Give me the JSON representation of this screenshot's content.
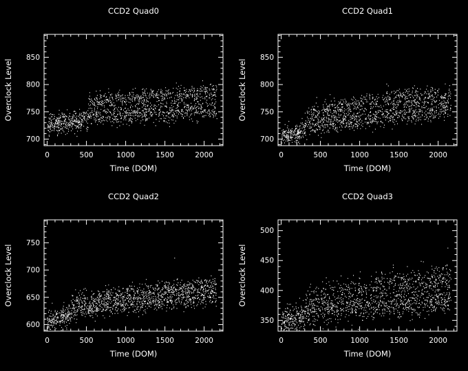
{
  "app": {
    "background": "#000000",
    "foreground": "#ffffff"
  },
  "chart_data": [
    {
      "type": "scatter",
      "title": "CCD2 Quad0",
      "xlabel": "Time (DOM)",
      "ylabel": "Overclock Level",
      "xlim": [
        -40,
        2240
      ],
      "ylim": [
        688,
        892
      ],
      "xticks": [
        0,
        500,
        1000,
        1500,
        2000
      ],
      "yticks": [
        700,
        750,
        800,
        850
      ],
      "x_minor": 100,
      "y_minor": 10,
      "grid": false,
      "point_color": "#ffffff",
      "axis_color": "#ffffff",
      "distribution": {
        "seed": 101,
        "n": 1500,
        "segments": [
          {
            "x0": 0,
            "x1": 520,
            "bands": [
              {
                "w": 1.0,
                "y_start": 727,
                "y_end": 737,
                "sd": 10,
                "exp": 1
              }
            ]
          },
          {
            "x0": 520,
            "x1": 2160,
            "bands": [
              {
                "w": 0.55,
                "y_start": 742,
                "y_end": 754,
                "sd": 9,
                "exp": 0.9
              },
              {
                "w": 0.45,
                "y_start": 767,
                "y_end": 786,
                "sd": 8,
                "exp": 0.8
              }
            ]
          }
        ]
      },
      "outliers": []
    },
    {
      "type": "scatter",
      "title": "CCD2 Quad1",
      "xlabel": "Time (DOM)",
      "ylabel": "Overclock Level",
      "xlim": [
        -40,
        2240
      ],
      "ylim": [
        688,
        892
      ],
      "xticks": [
        0,
        500,
        1000,
        1500,
        2000
      ],
      "yticks": [
        700,
        750,
        800,
        850
      ],
      "x_minor": 100,
      "y_minor": 10,
      "grid": false,
      "point_color": "#ffffff",
      "axis_color": "#ffffff",
      "distribution": {
        "seed": 202,
        "n": 1500,
        "segments": [
          {
            "x0": 0,
            "x1": 300,
            "bands": [
              {
                "w": 1.0,
                "y_start": 706,
                "y_end": 714,
                "sd": 8,
                "exp": 1
              }
            ]
          },
          {
            "x0": 300,
            "x1": 2160,
            "bands": [
              {
                "w": 0.55,
                "y_start": 722,
                "y_end": 754,
                "sd": 9,
                "exp": 0.8
              },
              {
                "w": 0.45,
                "y_start": 738,
                "y_end": 783,
                "sd": 9,
                "exp": 0.55
              }
            ]
          }
        ]
      },
      "outliers": []
    },
    {
      "type": "scatter",
      "title": "CCD2 Quad2",
      "xlabel": "Time (DOM)",
      "ylabel": "Overclock Level",
      "xlim": [
        -40,
        2240
      ],
      "ylim": [
        588,
        792
      ],
      "xticks": [
        0,
        500,
        1000,
        1500,
        2000
      ],
      "yticks": [
        600,
        650,
        700,
        750
      ],
      "x_minor": 100,
      "y_minor": 10,
      "grid": false,
      "point_color": "#ffffff",
      "axis_color": "#ffffff",
      "distribution": {
        "seed": 303,
        "n": 1500,
        "segments": [
          {
            "x0": 0,
            "x1": 300,
            "bands": [
              {
                "w": 1.0,
                "y_start": 607,
                "y_end": 616,
                "sd": 9,
                "exp": 1
              }
            ]
          },
          {
            "x0": 300,
            "x1": 2160,
            "bands": [
              {
                "w": 0.55,
                "y_start": 624,
                "y_end": 652,
                "sd": 9,
                "exp": 0.8
              },
              {
                "w": 0.45,
                "y_start": 638,
                "y_end": 672,
                "sd": 8,
                "exp": 0.6
              }
            ]
          }
        ]
      },
      "outliers": [
        [
          1620,
          722
        ]
      ]
    },
    {
      "type": "scatter",
      "title": "CCD2 Quad3",
      "xlabel": "Time (DOM)",
      "ylabel": "Overclock Level",
      "xlim": [
        -40,
        2240
      ],
      "ylim": [
        332,
        518
      ],
      "xticks": [
        0,
        500,
        1000,
        1500,
        2000
      ],
      "yticks": [
        350,
        400,
        450,
        500
      ],
      "x_minor": 100,
      "y_minor": 10,
      "grid": false,
      "point_color": "#ffffff",
      "axis_color": "#ffffff",
      "distribution": {
        "seed": 404,
        "n": 1500,
        "segments": [
          {
            "x0": 0,
            "x1": 300,
            "bands": [
              {
                "w": 1.0,
                "y_start": 349,
                "y_end": 356,
                "sd": 11,
                "exp": 1
              }
            ]
          },
          {
            "x0": 300,
            "x1": 2160,
            "bands": [
              {
                "w": 0.55,
                "y_start": 362,
                "y_end": 383,
                "sd": 11,
                "exp": 0.8
              },
              {
                "w": 0.45,
                "y_start": 380,
                "y_end": 421,
                "sd": 12,
                "exp": 0.7
              }
            ]
          }
        ]
      },
      "outliers": []
    }
  ]
}
